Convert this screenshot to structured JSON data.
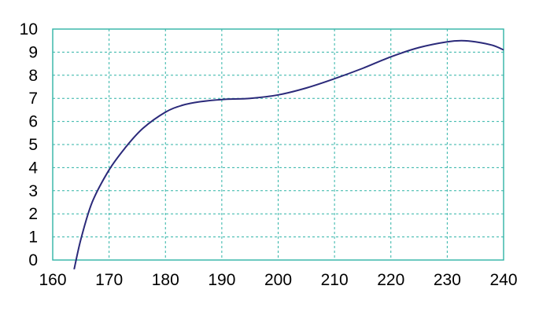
{
  "chart_data": {
    "type": "line",
    "title": "",
    "xlabel": "",
    "ylabel": "",
    "xlim": [
      160,
      240
    ],
    "ylim": [
      0,
      10
    ],
    "xticks": [
      160,
      170,
      180,
      190,
      200,
      210,
      220,
      230,
      240
    ],
    "yticks": [
      0,
      1,
      2,
      3,
      4,
      5,
      6,
      7,
      8,
      9,
      10
    ],
    "grid": true,
    "legend": "none",
    "colors": {
      "line": "#2b2a7a",
      "grid": "#2fb3a6"
    },
    "series": [
      {
        "x": [
          163.8,
          165,
          167,
          170,
          173,
          176,
          180,
          183,
          186,
          190,
          195,
          200,
          205,
          210,
          215,
          220,
          225,
          230,
          232.5,
          235,
          238,
          240
        ],
        "y": [
          -0.4,
          0.9,
          2.5,
          3.9,
          4.9,
          5.7,
          6.4,
          6.7,
          6.85,
          6.95,
          7.0,
          7.15,
          7.45,
          7.85,
          8.3,
          8.8,
          9.2,
          9.45,
          9.5,
          9.45,
          9.3,
          9.1
        ]
      }
    ]
  }
}
